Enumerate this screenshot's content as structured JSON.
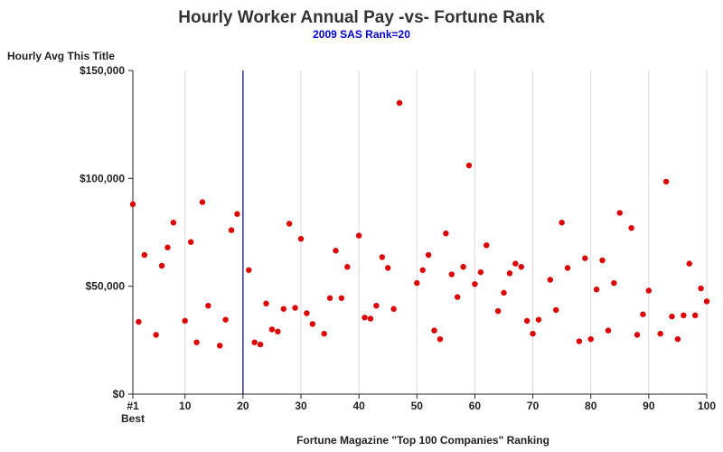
{
  "chart_data": {
    "type": "scatter",
    "title": "Hourly Worker Annual Pay -vs- Fortune Rank",
    "subtitle": "2009 SAS Rank=20",
    "xlabel": "Fortune Magazine \"Top 100 Companies\" Ranking",
    "ylabel": "Hourly Avg This Title",
    "xlim": [
      1,
      100
    ],
    "ylim": [
      0,
      150000
    ],
    "x_ticks": [
      {
        "value": 1,
        "label": "#1"
      },
      {
        "value": 10,
        "label": "10"
      },
      {
        "value": 20,
        "label": "20"
      },
      {
        "value": 30,
        "label": "30"
      },
      {
        "value": 40,
        "label": "40"
      },
      {
        "value": 50,
        "label": "50"
      },
      {
        "value": 60,
        "label": "60"
      },
      {
        "value": 70,
        "label": "70"
      },
      {
        "value": 80,
        "label": "80"
      },
      {
        "value": 90,
        "label": "90"
      },
      {
        "value": 100,
        "label": "100"
      }
    ],
    "x_tick_sublabel": "Best",
    "y_ticks": [
      {
        "value": 0,
        "label": "$0"
      },
      {
        "value": 50000,
        "label": "$50,000"
      },
      {
        "value": 100000,
        "label": "$100,000"
      },
      {
        "value": 150000,
        "label": "$150,000"
      }
    ],
    "grid": {
      "vertical": true,
      "horizontal": false
    },
    "reference_line": {
      "x": 20,
      "color": "#000080"
    },
    "marker_color": "#dd0000",
    "points": [
      {
        "x": 1,
        "y": 88000
      },
      {
        "x": 2,
        "y": 33500
      },
      {
        "x": 3,
        "y": 64500
      },
      {
        "x": 5,
        "y": 27500
      },
      {
        "x": 6,
        "y": 59500
      },
      {
        "x": 7,
        "y": 68000
      },
      {
        "x": 8,
        "y": 79500
      },
      {
        "x": 10,
        "y": 34000
      },
      {
        "x": 11,
        "y": 70500
      },
      {
        "x": 12,
        "y": 24000
      },
      {
        "x": 13,
        "y": 89000
      },
      {
        "x": 14,
        "y": 41000
      },
      {
        "x": 16,
        "y": 22500
      },
      {
        "x": 17,
        "y": 34500
      },
      {
        "x": 18,
        "y": 76000
      },
      {
        "x": 19,
        "y": 83500
      },
      {
        "x": 21,
        "y": 57500
      },
      {
        "x": 22,
        "y": 24000
      },
      {
        "x": 23,
        "y": 23000
      },
      {
        "x": 24,
        "y": 42000
      },
      {
        "x": 25,
        "y": 30000
      },
      {
        "x": 26,
        "y": 29000
      },
      {
        "x": 27,
        "y": 39500
      },
      {
        "x": 28,
        "y": 79000
      },
      {
        "x": 29,
        "y": 40000
      },
      {
        "x": 30,
        "y": 72000
      },
      {
        "x": 31,
        "y": 37500
      },
      {
        "x": 32,
        "y": 32500
      },
      {
        "x": 34,
        "y": 28000
      },
      {
        "x": 35,
        "y": 44500
      },
      {
        "x": 36,
        "y": 66500
      },
      {
        "x": 37,
        "y": 44500
      },
      {
        "x": 38,
        "y": 59000
      },
      {
        "x": 40,
        "y": 73500
      },
      {
        "x": 41,
        "y": 35500
      },
      {
        "x": 42,
        "y": 35000
      },
      {
        "x": 43,
        "y": 41000
      },
      {
        "x": 44,
        "y": 63500
      },
      {
        "x": 45,
        "y": 58500
      },
      {
        "x": 46,
        "y": 39500
      },
      {
        "x": 47,
        "y": 135000
      },
      {
        "x": 50,
        "y": 51500
      },
      {
        "x": 51,
        "y": 57500
      },
      {
        "x": 52,
        "y": 64500
      },
      {
        "x": 53,
        "y": 29500
      },
      {
        "x": 54,
        "y": 25500
      },
      {
        "x": 55,
        "y": 74500
      },
      {
        "x": 56,
        "y": 55500
      },
      {
        "x": 57,
        "y": 45000
      },
      {
        "x": 58,
        "y": 59000
      },
      {
        "x": 59,
        "y": 106000
      },
      {
        "x": 60,
        "y": 51000
      },
      {
        "x": 61,
        "y": 56500
      },
      {
        "x": 62,
        "y": 69000
      },
      {
        "x": 64,
        "y": 38500
      },
      {
        "x": 65,
        "y": 47000
      },
      {
        "x": 66,
        "y": 56000
      },
      {
        "x": 67,
        "y": 60500
      },
      {
        "x": 68,
        "y": 59000
      },
      {
        "x": 69,
        "y": 34000
      },
      {
        "x": 70,
        "y": 28000
      },
      {
        "x": 71,
        "y": 34500
      },
      {
        "x": 73,
        "y": 53000
      },
      {
        "x": 74,
        "y": 39000
      },
      {
        "x": 75,
        "y": 79500
      },
      {
        "x": 76,
        "y": 58500
      },
      {
        "x": 78,
        "y": 24500
      },
      {
        "x": 79,
        "y": 63000
      },
      {
        "x": 80,
        "y": 25500
      },
      {
        "x": 81,
        "y": 48500
      },
      {
        "x": 82,
        "y": 62000
      },
      {
        "x": 83,
        "y": 29500
      },
      {
        "x": 84,
        "y": 51500
      },
      {
        "x": 85,
        "y": 84000
      },
      {
        "x": 87,
        "y": 77000
      },
      {
        "x": 88,
        "y": 27500
      },
      {
        "x": 89,
        "y": 37000
      },
      {
        "x": 90,
        "y": 48000
      },
      {
        "x": 92,
        "y": 28000
      },
      {
        "x": 93,
        "y": 98500
      },
      {
        "x": 94,
        "y": 36000
      },
      {
        "x": 95,
        "y": 25500
      },
      {
        "x": 96,
        "y": 36500
      },
      {
        "x": 97,
        "y": 60500
      },
      {
        "x": 98,
        "y": 36500
      },
      {
        "x": 99,
        "y": 49000
      },
      {
        "x": 100,
        "y": 43000
      }
    ]
  }
}
